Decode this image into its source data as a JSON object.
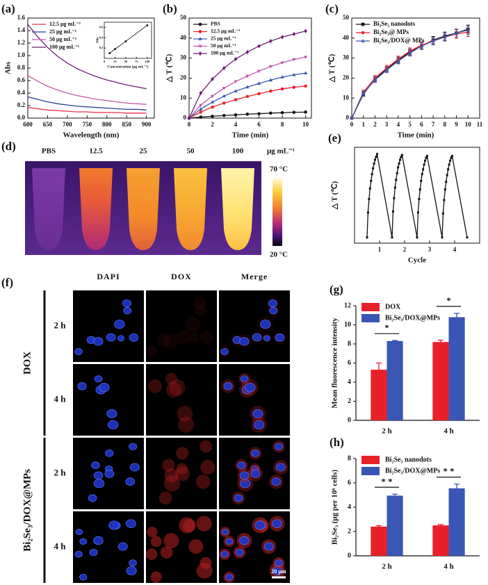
{
  "chart_data": [
    {
      "type": "line",
      "label": "(a)",
      "xlabel": "Wavelength (nm)",
      "ylabel": "Abs",
      "x": [
        600,
        625,
        650,
        675,
        700,
        725,
        750,
        775,
        800,
        825,
        850,
        875,
        900
      ],
      "xlim": [
        600,
        920
      ],
      "ylim": [
        0,
        1.6
      ],
      "xticks": [
        600,
        650,
        700,
        750,
        800,
        850,
        900
      ],
      "yticks": [
        {
          "value": 0,
          "label": "0.0"
        },
        0.2,
        0.4,
        0.6,
        0.8,
        {
          "value": 1,
          "label": "1.0"
        },
        1.2,
        1.4,
        1.6
      ],
      "legend": "upper left",
      "series": [
        {
          "name": "12.5 μg mL⁻¹",
          "color": "#e8344e",
          "values": [
            0.17,
            0.15,
            0.13,
            0.12,
            0.11,
            0.1,
            0.1,
            0.09,
            0.09,
            0.09,
            0.08,
            0.08,
            0.08
          ]
        },
        {
          "name": "25 μg mL⁻¹",
          "color": "#2a3f8f",
          "values": [
            0.34,
            0.3,
            0.26,
            0.23,
            0.21,
            0.19,
            0.18,
            0.17,
            0.16,
            0.15,
            0.14,
            0.14,
            0.13
          ]
        },
        {
          "name": "50 μg mL⁻¹",
          "color": "#c05aa9",
          "values": [
            0.68,
            0.59,
            0.51,
            0.45,
            0.4,
            0.36,
            0.33,
            0.3,
            0.28,
            0.26,
            0.24,
            0.23,
            0.22
          ]
        },
        {
          "name": "100 μg mL⁻¹",
          "color": "#6b1f6e",
          "values": [
            1.5,
            1.3,
            1.13,
            0.99,
            0.88,
            0.79,
            0.72,
            0.66,
            0.61,
            0.57,
            0.53,
            0.5,
            0.47
          ]
        }
      ],
      "inset": {
        "xlabel": "Concentration (μg mL⁻¹)",
        "ylabel": "Abs",
        "x": [
          12.5,
          25,
          50,
          100
        ],
        "values": [
          0.1,
          0.18,
          0.33,
          0.64
        ],
        "xlim": [
          0,
          110
        ],
        "ylim": [
          0,
          0.7
        ],
        "xticks": [
          0,
          25,
          50,
          75,
          100
        ],
        "yticks": [
          0.2,
          0.4,
          0.6
        ],
        "color": "#111111"
      }
    },
    {
      "type": "line",
      "label": "(b)",
      "xlabel": "Time (min)",
      "ylabel": "△ T (℃)",
      "x": [
        0,
        1,
        2,
        3,
        4,
        5,
        6,
        7,
        8,
        9,
        10
      ],
      "xlim": [
        0,
        10.5
      ],
      "ylim": [
        0,
        50
      ],
      "xticks": [
        0,
        2,
        4,
        6,
        8,
        10
      ],
      "yticks": [
        0,
        10,
        20,
        30,
        40,
        50
      ],
      "legend": "upper left",
      "series": [
        {
          "name": "PBS",
          "color": "#111111",
          "marker": "circle",
          "values": [
            0,
            0.5,
            0.9,
            1.3,
            1.6,
            2,
            2.2,
            2.5,
            2.7,
            2.9,
            3
          ]
        },
        {
          "name": "12.5 μg mL⁻¹",
          "color": "#e8252b",
          "marker": "circle",
          "values": [
            0,
            3,
            5.5,
            7.5,
            9.2,
            10.8,
            12.2,
            13.5,
            14.6,
            15.4,
            16
          ]
        },
        {
          "name": "25 μg mL⁻¹",
          "color": "#3d58b0",
          "marker": "triangle",
          "values": [
            0,
            4.5,
            8,
            11,
            13.5,
            15.5,
            17.3,
            19,
            20.5,
            21.6,
            22.5
          ]
        },
        {
          "name": "50 μg mL⁻¹",
          "color": "#c05aa9",
          "marker": "triangle-down",
          "values": [
            0,
            6.5,
            11,
            15,
            18.3,
            21,
            23.5,
            25.8,
            27.7,
            29.3,
            30.5
          ]
        },
        {
          "name": "100 μg mL⁻¹",
          "color": "#6b1f6e",
          "marker": "diamond",
          "values": [
            0,
            12.5,
            19.5,
            25,
            29.5,
            33,
            36,
            38.5,
            40.5,
            42,
            43.5
          ]
        }
      ]
    },
    {
      "type": "line",
      "label": "(c)",
      "xlabel": "Time (min)",
      "ylabel": "△ T (℃)",
      "x": [
        0,
        1,
        2,
        3,
        4,
        5,
        6,
        7,
        8,
        9,
        10
      ],
      "xlim": [
        0,
        11
      ],
      "ylim": [
        0,
        50
      ],
      "xticks": [
        0,
        1,
        2,
        3,
        4,
        5,
        6,
        7,
        8,
        9,
        10,
        11
      ],
      "yticks": [
        0,
        10,
        20,
        30,
        40,
        50
      ],
      "legend": "upper left",
      "series": [
        {
          "name": "Bi₂Se₃ nanodots",
          "color": "#111111",
          "marker": "square",
          "values": [
            0,
            12,
            19.5,
            24.5,
            29,
            33,
            36,
            39,
            41,
            42.5,
            44.5
          ],
          "errors": [
            0,
            1,
            1.2,
            1.3,
            1.5,
            1.5,
            1.6,
            1.8,
            2,
            2,
            2
          ]
        },
        {
          "name": "Bi₂Se₃@ MPs",
          "color": "#e8252b",
          "marker": "circle",
          "values": [
            0,
            13,
            20,
            25,
            29.5,
            33.5,
            36.5,
            38.5,
            40.5,
            42,
            43
          ],
          "errors": [
            0,
            1,
            1.3,
            1.4,
            1.5,
            1.6,
            1.7,
            1.8,
            2,
            2.1,
            2.2
          ]
        },
        {
          "name": "Bi₂Se₃/DOX@ MPs",
          "color": "#3d58b0",
          "marker": "triangle",
          "values": [
            0,
            12.5,
            19,
            24,
            28.5,
            32.5,
            36,
            38.5,
            40.5,
            42.5,
            44
          ],
          "errors": [
            0,
            1,
            1.2,
            1.3,
            1.4,
            1.5,
            1.7,
            1.9,
            2,
            2,
            2.1
          ]
        }
      ]
    },
    {
      "type": "line",
      "label": "(e)",
      "xlabel": "Cycle",
      "ylabel": "△ T (℃)",
      "x": [
        0.5,
        0.54,
        0.58,
        0.62,
        0.66,
        0.7,
        0.74,
        0.78,
        0.82,
        0.86,
        0.9,
        1.5,
        1.54,
        1.58,
        1.62,
        1.66,
        1.7,
        1.74,
        1.78,
        1.82,
        1.86,
        1.9,
        2.5,
        2.54,
        2.58,
        2.62,
        2.66,
        2.7,
        2.74,
        2.78,
        2.82,
        2.86,
        2.9,
        3.5,
        3.54,
        3.58,
        3.62,
        3.66,
        3.7,
        3.74,
        3.78,
        3.82,
        3.86,
        3.9,
        4.5
      ],
      "xlim": [
        0,
        5
      ],
      "ylim": [
        -3,
        47
      ],
      "xticks": [
        1,
        2,
        3,
        4
      ],
      "series": [
        {
          "color": "#111111",
          "marker": "square",
          "values": [
            0,
            13,
            20,
            25.5,
            29.5,
            33,
            36,
            38.5,
            40.5,
            42,
            43.5,
            0,
            13.5,
            20.5,
            26,
            30,
            33.5,
            36.5,
            38.5,
            40.5,
            42,
            43,
            0,
            13,
            20,
            25,
            29.5,
            33,
            35.5,
            38,
            40,
            41.5,
            42.5,
            0,
            12.5,
            19.5,
            25,
            29,
            32.5,
            35.5,
            38,
            40,
            41.5,
            42.5,
            0
          ]
        }
      ]
    },
    {
      "type": "bar",
      "label": "(g)",
      "ylabel": "Mean fluorescence intensity",
      "categories": [
        "2 h",
        "4 h"
      ],
      "ylim": [
        0,
        12
      ],
      "yticks": [
        0,
        2,
        4,
        6,
        8,
        10,
        12
      ],
      "legend": "upper left",
      "annotations": [
        "*",
        "*"
      ],
      "series": [
        {
          "name": "DOX",
          "color": "#e8202a",
          "values": [
            5.3,
            8.2
          ],
          "errors": [
            0.7,
            0.2
          ]
        },
        {
          "name": "Bi₂Se₃/DOX@MPs",
          "color": "#3a56b4",
          "values": [
            8.3,
            10.8
          ],
          "errors": [
            0.05,
            0.4
          ]
        }
      ]
    },
    {
      "type": "bar",
      "label": "(h)",
      "ylabel": "Bi₂Se₃ (μg per 10⁶ cells)",
      "categories": [
        "2 h",
        "4 h"
      ],
      "ylim": [
        0,
        8
      ],
      "yticks": [
        0,
        2,
        4,
        6,
        8
      ],
      "legend": "upper left",
      "annotations": [
        "* *",
        "* *"
      ],
      "series": [
        {
          "name": "Bi₂Se₃ nanodots",
          "color": "#e8202a",
          "values": [
            2.4,
            2.5
          ],
          "errors": [
            0.08,
            0.06
          ]
        },
        {
          "name": "Bi₂Se₃/DOX@MPs",
          "color": "#3a56b4",
          "values": [
            4.95,
            5.55
          ],
          "errors": [
            0.12,
            0.35
          ]
        }
      ]
    }
  ],
  "thermal_image": {
    "label": "(d)",
    "columns": [
      "PBS",
      "12.5",
      "25",
      "50",
      "100"
    ],
    "unit": "μg mL⁻¹",
    "scale_max": "70 °C",
    "scale_min": "20 °C"
  },
  "microscopy": {
    "label": "(f)",
    "columns": [
      "DAPI",
      "DOX",
      "Merge"
    ],
    "groups": [
      {
        "name": "DOX",
        "rows": [
          "2 h",
          "4 h"
        ]
      },
      {
        "name": "Bi₂Se₃/DOX@MPs",
        "rows": [
          "2 h",
          "4 h"
        ]
      }
    ],
    "scale_bar": "20 μm"
  }
}
